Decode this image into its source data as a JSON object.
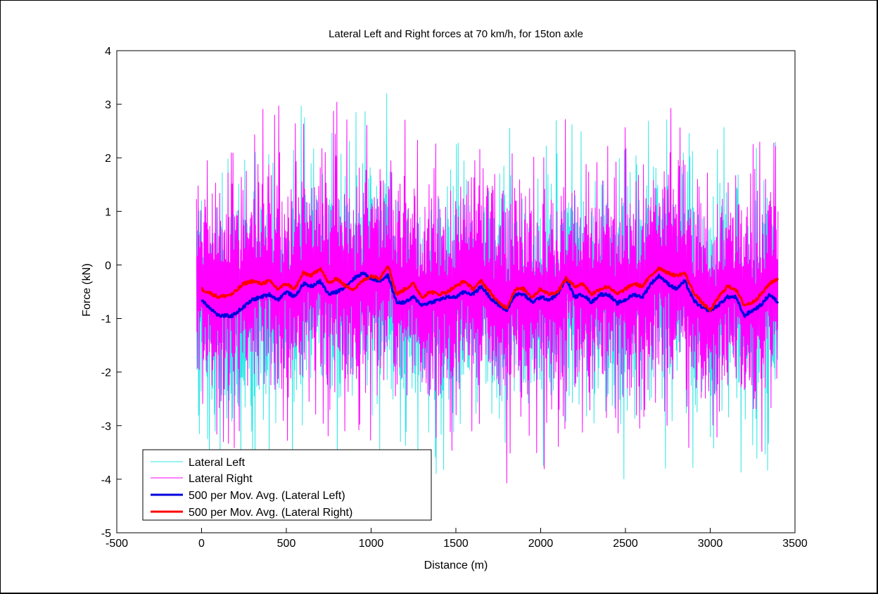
{
  "chart_data": {
    "type": "line",
    "title": "Lateral Left and Right forces at 70 km/h, for 15ton axle",
    "xlabel": "Distance (m)",
    "ylabel": "Force (kN)",
    "xlim": [
      -500,
      3500
    ],
    "ylim": [
      -5,
      4
    ],
    "xticks": [
      -500,
      0,
      500,
      1000,
      1500,
      2000,
      2500,
      3000,
      3500
    ],
    "yticks": [
      -5,
      -4,
      -3,
      -2,
      -1,
      0,
      1,
      2,
      3,
      4
    ],
    "grid": false,
    "legend_position": "bottom-left",
    "legend": [
      "Lateral Left",
      "Lateral Right",
      "500 per Mov. Avg. (Lateral Left)",
      "500 per Mov. Avg. (Lateral Right)"
    ],
    "colors": {
      "lateral_left": "#33e6e6",
      "lateral_right": "#ff00ff",
      "avg_left": "#0000dd",
      "avg_right": "#ff0000"
    },
    "raw_signal": {
      "x_range": [
        -30,
        3400
      ],
      "lateral_left_range": [
        -4.0,
        3.2
      ],
      "lateral_right_range": [
        -4.1,
        3.3
      ]
    },
    "avg_left": {
      "x": [
        0,
        100,
        180,
        250,
        300,
        350,
        400,
        450,
        500,
        550,
        600,
        650,
        700,
        750,
        800,
        850,
        900,
        950,
        1000,
        1050,
        1100,
        1150,
        1200,
        1250,
        1300,
        1350,
        1400,
        1450,
        1500,
        1550,
        1600,
        1650,
        1700,
        1750,
        1800,
        1850,
        1900,
        1950,
        2000,
        2050,
        2100,
        2150,
        2200,
        2250,
        2300,
        2350,
        2400,
        2450,
        2500,
        2550,
        2600,
        2650,
        2700,
        2750,
        2800,
        2850,
        2900,
        2950,
        3000,
        3050,
        3100,
        3150,
        3200,
        3250,
        3300,
        3350,
        3400
      ],
      "y": [
        -0.65,
        -0.95,
        -0.95,
        -0.78,
        -0.65,
        -0.6,
        -0.55,
        -0.65,
        -0.5,
        -0.6,
        -0.35,
        -0.4,
        -0.3,
        -0.55,
        -0.5,
        -0.4,
        -0.25,
        -0.15,
        -0.25,
        -0.3,
        -0.2,
        -0.7,
        -0.7,
        -0.6,
        -0.75,
        -0.7,
        -0.65,
        -0.6,
        -0.6,
        -0.5,
        -0.55,
        -0.4,
        -0.6,
        -0.75,
        -0.85,
        -0.55,
        -0.55,
        -0.7,
        -0.6,
        -0.65,
        -0.55,
        -0.25,
        -0.6,
        -0.55,
        -0.7,
        -0.55,
        -0.55,
        -0.72,
        -0.65,
        -0.55,
        -0.6,
        -0.35,
        -0.2,
        -0.35,
        -0.45,
        -0.3,
        -0.65,
        -0.8,
        -0.85,
        -0.75,
        -0.6,
        -0.6,
        -0.95,
        -0.85,
        -0.75,
        -0.55,
        -0.7
      ]
    },
    "avg_right": {
      "x": [
        0,
        100,
        180,
        250,
        300,
        350,
        400,
        450,
        500,
        550,
        600,
        650,
        700,
        750,
        800,
        850,
        900,
        950,
        1000,
        1050,
        1100,
        1150,
        1200,
        1250,
        1300,
        1350,
        1400,
        1450,
        1500,
        1550,
        1600,
        1650,
        1700,
        1750,
        1800,
        1850,
        1900,
        1950,
        2000,
        2050,
        2100,
        2150,
        2200,
        2250,
        2300,
        2350,
        2400,
        2450,
        2500,
        2550,
        2600,
        2650,
        2700,
        2750,
        2800,
        2850,
        2900,
        2950,
        3000,
        3050,
        3100,
        3150,
        3200,
        3250,
        3300,
        3350,
        3400
      ],
      "y": [
        -0.45,
        -0.6,
        -0.55,
        -0.35,
        -0.3,
        -0.35,
        -0.3,
        -0.45,
        -0.35,
        -0.45,
        -0.15,
        -0.2,
        -0.05,
        -0.35,
        -0.25,
        -0.4,
        -0.45,
        -0.3,
        -0.2,
        -0.25,
        0.0,
        -0.55,
        -0.45,
        -0.35,
        -0.6,
        -0.5,
        -0.55,
        -0.5,
        -0.4,
        -0.3,
        -0.45,
        -0.3,
        -0.5,
        -0.7,
        -0.8,
        -0.45,
        -0.45,
        -0.6,
        -0.45,
        -0.55,
        -0.5,
        -0.25,
        -0.4,
        -0.35,
        -0.55,
        -0.45,
        -0.4,
        -0.55,
        -0.45,
        -0.35,
        -0.4,
        -0.2,
        -0.05,
        -0.15,
        -0.2,
        -0.15,
        -0.5,
        -0.7,
        -0.85,
        -0.6,
        -0.4,
        -0.45,
        -0.75,
        -0.7,
        -0.55,
        -0.35,
        -0.25
      ]
    }
  }
}
